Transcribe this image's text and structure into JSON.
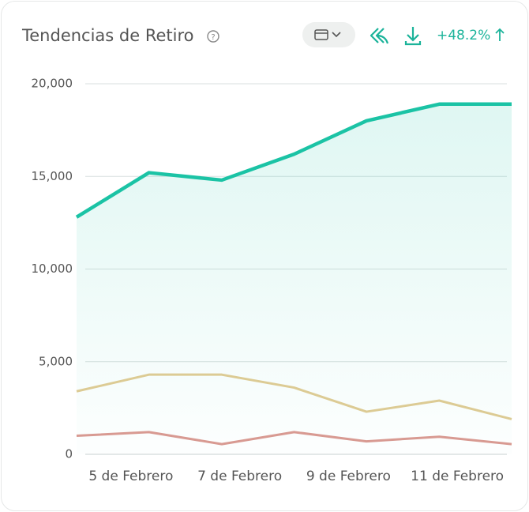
{
  "header": {
    "title": "Tendencias de Retiro",
    "change": "+48.2%"
  },
  "chart_data": {
    "type": "line",
    "x": [
      4,
      5.33,
      6.67,
      8,
      9.33,
      10.67,
      12
    ],
    "xlim": [
      4,
      12
    ],
    "xticks": [
      {
        "value": 5,
        "label": "5 de Febrero"
      },
      {
        "value": 7,
        "label": "7 de Febrero"
      },
      {
        "value": 9,
        "label": "9 de Febrero"
      },
      {
        "value": 11,
        "label": "11 de Febrero"
      }
    ],
    "ylim": [
      0,
      20000
    ],
    "yticks": [
      0,
      {
        "value": 5000,
        "label": "5,000"
      },
      {
        "value": 10000,
        "label": "10,000"
      },
      {
        "value": 15000,
        "label": "15,000"
      },
      {
        "value": 20000,
        "label": "20,000"
      }
    ],
    "grid": true,
    "series": [
      {
        "color": "#1bc3a5",
        "values": [
          12800,
          15200,
          14800,
          16200,
          18000,
          18900,
          18900
        ],
        "area": true
      },
      {
        "color": "#dccb94",
        "values": [
          3400,
          4300,
          4300,
          3600,
          2300,
          2900,
          1900
        ]
      },
      {
        "color": "#d89a92",
        "values": [
          1000,
          1200,
          550,
          1200,
          700,
          950,
          550
        ]
      }
    ]
  }
}
